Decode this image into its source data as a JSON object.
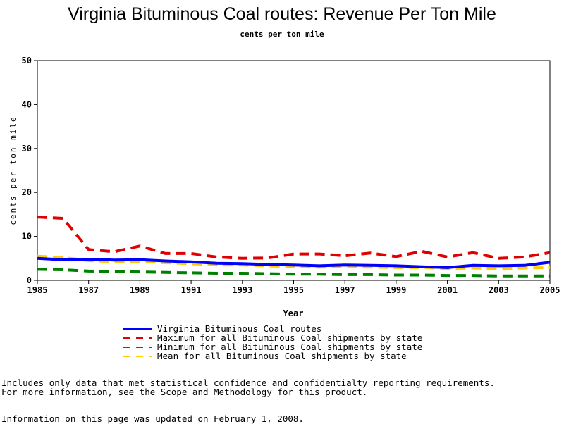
{
  "chart_data": {
    "type": "line",
    "title": "Virginia Bituminous Coal routes: Revenue Per Ton Mile",
    "subtitle": "cents per ton mile",
    "xlabel": "Year",
    "ylabel": "cents per ton mile",
    "xlim": [
      1985,
      2005
    ],
    "ylim": [
      0,
      50
    ],
    "x_ticks": [
      "1985",
      "1987",
      "1989",
      "1991",
      "1993",
      "1995",
      "1997",
      "1999",
      "2001",
      "2003",
      "2005"
    ],
    "y_ticks": [
      "0",
      "10",
      "20",
      "30",
      "40",
      "50"
    ],
    "grid": false,
    "legend_position": "bottom",
    "x": [
      1985,
      1986,
      1987,
      1988,
      1989,
      1990,
      1991,
      1992,
      1993,
      1994,
      1995,
      1996,
      1997,
      1998,
      1999,
      2000,
      2001,
      2002,
      2003,
      2004,
      2005
    ],
    "series": [
      {
        "name": "Virginia Bituminous Coal routes",
        "color": "#0000ff",
        "style": "solid",
        "values": [
          5.0,
          4.7,
          4.8,
          4.6,
          4.7,
          4.4,
          4.2,
          3.9,
          3.8,
          3.6,
          3.5,
          3.3,
          3.5,
          3.4,
          3.3,
          3.1,
          2.9,
          3.4,
          3.3,
          3.4,
          4.1
        ]
      },
      {
        "name": "Maximum for all Bituminous Coal shipments by state",
        "color": "#e00000",
        "style": "dashed",
        "values": [
          14.4,
          14.1,
          7.0,
          6.5,
          7.8,
          6.1,
          6.1,
          5.3,
          5.0,
          5.1,
          6.0,
          6.0,
          5.6,
          6.2,
          5.4,
          6.6,
          5.3,
          6.3,
          5.0,
          5.3,
          6.3
        ]
      },
      {
        "name": "Minimum for all Bituminous Coal shipments by state",
        "color": "#008000",
        "style": "dashed",
        "values": [
          2.5,
          2.4,
          2.1,
          2.0,
          1.9,
          1.8,
          1.7,
          1.6,
          1.6,
          1.5,
          1.4,
          1.4,
          1.3,
          1.3,
          1.2,
          1.2,
          1.1,
          1.1,
          1.0,
          1.0,
          1.0
        ]
      },
      {
        "name": "Mean for all Bituminous Coal shipments by state",
        "color": "#ffcc00",
        "style": "dashed",
        "values": [
          5.5,
          5.2,
          4.5,
          4.2,
          4.3,
          4.0,
          3.8,
          3.5,
          3.5,
          3.3,
          3.1,
          3.0,
          3.1,
          3.0,
          2.9,
          2.9,
          2.7,
          2.8,
          2.7,
          2.8,
          2.9
        ]
      }
    ]
  },
  "footnotes": {
    "line1": "Includes only data that met statistical confidence and confidentialty reporting requirements.",
    "line2": "For more information, see the Scope and Methodology for this product.",
    "line3": "Information on this page was updated on February 1, 2008."
  }
}
